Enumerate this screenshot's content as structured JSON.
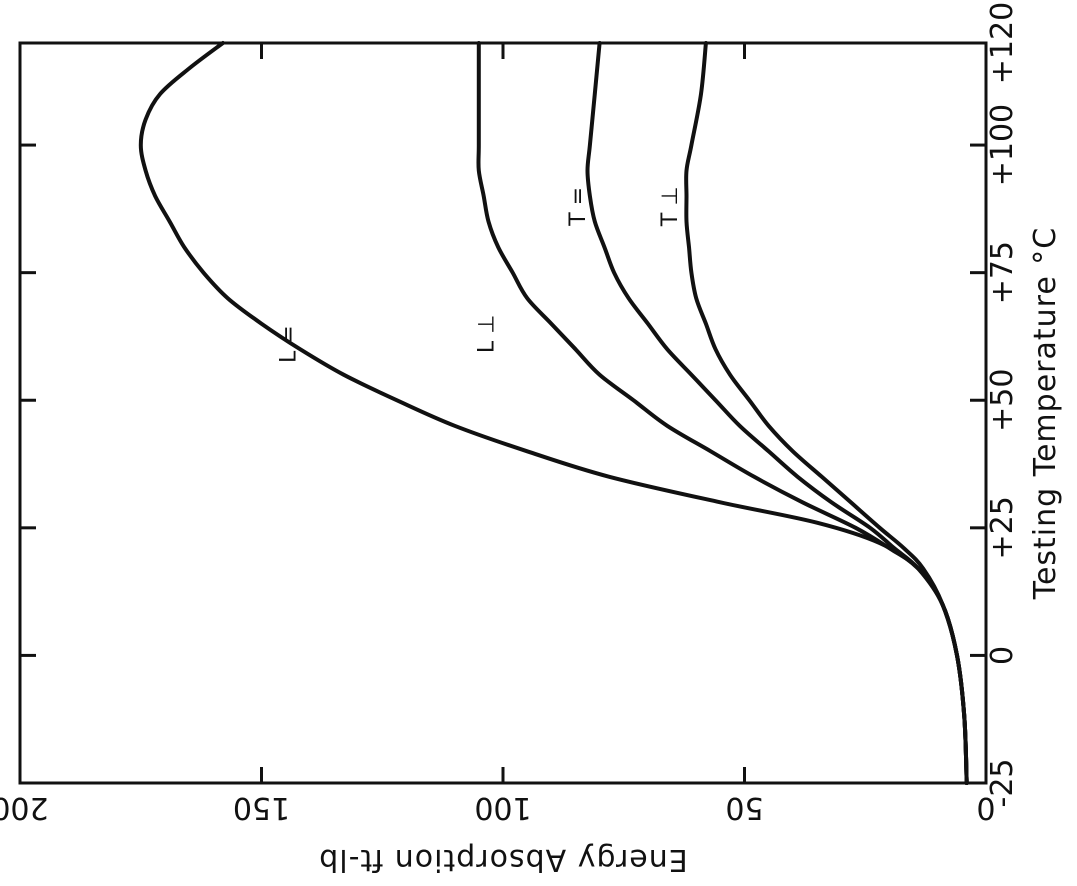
{
  "chart_data": {
    "type": "line",
    "orientation": "rotated 90 degrees (x axis along right edge, y axis along bottom edge)",
    "xlabel": "Testing Temperature °C",
    "ylabel": "Energy Absorption ft-lb",
    "xlim": [
      -25,
      120
    ],
    "ylim": [
      0,
      200
    ],
    "x_ticks": [
      "-25",
      "0",
      "+25",
      "+50",
      "+75",
      "+100",
      "+120"
    ],
    "x_tick_values": [
      -25,
      0,
      25,
      50,
      75,
      100,
      120
    ],
    "y_ticks": [
      "0",
      "50",
      "100",
      "150",
      "200"
    ],
    "y_tick_values": [
      0,
      50,
      100,
      150,
      200
    ],
    "grid": false,
    "line_color": "#111111",
    "series": [
      {
        "name": "L =",
        "label_at": [
          61,
          143
        ],
        "points": [
          [
            -25,
            4
          ],
          [
            -12,
            4.5
          ],
          [
            0,
            6
          ],
          [
            10,
            9
          ],
          [
            17,
            14
          ],
          [
            22,
            22
          ],
          [
            26,
            35
          ],
          [
            30,
            55
          ],
          [
            35,
            78
          ],
          [
            40,
            95
          ],
          [
            45,
            110
          ],
          [
            50,
            122
          ],
          [
            55,
            133
          ],
          [
            60,
            142
          ],
          [
            65,
            150
          ],
          [
            70,
            157
          ],
          [
            75,
            162
          ],
          [
            80,
            166
          ],
          [
            85,
            169
          ],
          [
            90,
            172
          ],
          [
            95,
            174
          ],
          [
            100,
            175
          ],
          [
            105,
            174
          ],
          [
            110,
            171
          ],
          [
            115,
            165
          ],
          [
            120,
            158
          ]
        ]
      },
      {
        "name": "L ⊥",
        "label_at": [
          63,
          102
        ],
        "points": [
          [
            -25,
            4
          ],
          [
            -12,
            4.5
          ],
          [
            0,
            6
          ],
          [
            10,
            9
          ],
          [
            17,
            14
          ],
          [
            21,
            20
          ],
          [
            25,
            27
          ],
          [
            30,
            38
          ],
          [
            35,
            48
          ],
          [
            40,
            57
          ],
          [
            45,
            66
          ],
          [
            50,
            73
          ],
          [
            55,
            80
          ],
          [
            60,
            85
          ],
          [
            65,
            90
          ],
          [
            70,
            95
          ],
          [
            75,
            98
          ],
          [
            80,
            101
          ],
          [
            85,
            103
          ],
          [
            90,
            104
          ],
          [
            95,
            105
          ],
          [
            100,
            105
          ],
          [
            110,
            105
          ],
          [
            120,
            105
          ]
        ]
      },
      {
        "name": "T =",
        "label_at": [
          88,
          83
        ],
        "points": [
          [
            -25,
            4
          ],
          [
            -12,
            4.5
          ],
          [
            0,
            6
          ],
          [
            10,
            9
          ],
          [
            17,
            14
          ],
          [
            21,
            19
          ],
          [
            25,
            24
          ],
          [
            30,
            32
          ],
          [
            35,
            39
          ],
          [
            40,
            45
          ],
          [
            45,
            51
          ],
          [
            50,
            56
          ],
          [
            55,
            61
          ],
          [
            60,
            66
          ],
          [
            65,
            70
          ],
          [
            70,
            74
          ],
          [
            75,
            77
          ],
          [
            80,
            79
          ],
          [
            85,
            81
          ],
          [
            90,
            82
          ],
          [
            95,
            82.5
          ],
          [
            100,
            82
          ],
          [
            110,
            81
          ],
          [
            120,
            80
          ]
        ]
      },
      {
        "name": "T ⊥",
        "label_at": [
          88,
          64
        ],
        "points": [
          [
            -25,
            4
          ],
          [
            -12,
            4.5
          ],
          [
            0,
            6
          ],
          [
            10,
            9
          ],
          [
            17,
            13
          ],
          [
            21,
            17
          ],
          [
            25,
            22
          ],
          [
            30,
            28
          ],
          [
            35,
            34
          ],
          [
            40,
            40
          ],
          [
            45,
            45
          ],
          [
            50,
            49
          ],
          [
            55,
            53
          ],
          [
            60,
            56
          ],
          [
            65,
            58
          ],
          [
            70,
            60
          ],
          [
            75,
            61
          ],
          [
            80,
            61.5
          ],
          [
            85,
            62
          ],
          [
            90,
            62
          ],
          [
            95,
            62
          ],
          [
            100,
            61
          ],
          [
            110,
            59
          ],
          [
            120,
            58
          ]
        ]
      }
    ]
  }
}
